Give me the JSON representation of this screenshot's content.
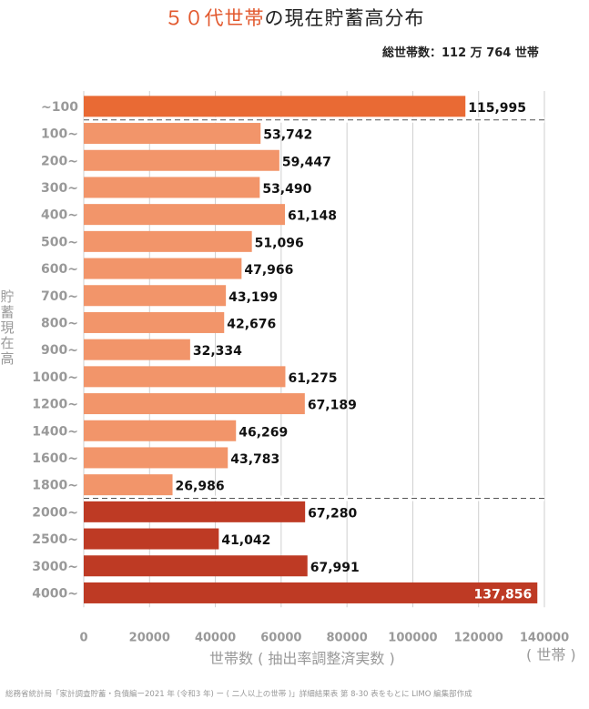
{
  "title": {
    "highlight": "５０代世帯",
    "rest": "の現在貯蓄高分布"
  },
  "total_households": "総世帯数：112 万 764 世帯",
  "x_axis_label": "世帯数 ( 抽出率調整済実数 )",
  "x_unit": "( 世帯 )",
  "y_axis_label": "貯蓄現在高",
  "source": "総務省統計局「家計調査貯蓄・負債編ー2021 年 (令和3 年) ー ( 二人以上の世帯 )」詳細結果表 第 8-30 表をもとに LIMO 編集部作成",
  "colors": {
    "top": "#e96a34",
    "middle": "#f2956a",
    "bottom": "#be3a24",
    "grid": "#cfcfcf",
    "divider": "#ffffff"
  },
  "chart_data": {
    "type": "bar",
    "orientation": "horizontal",
    "categories": [
      "~100",
      "100~",
      "200~",
      "300~",
      "400~",
      "500~",
      "600~",
      "700~",
      "800~",
      "900~",
      "1000~",
      "1200~",
      "1400~",
      "1600~",
      "1800~",
      "2000~",
      "2500~",
      "3000~",
      "4000~"
    ],
    "values": [
      115995,
      53742,
      59447,
      53490,
      61148,
      51096,
      47966,
      43199,
      42676,
      32334,
      61275,
      67189,
      46269,
      43783,
      26986,
      67280,
      41042,
      67991,
      137856
    ],
    "value_labels": [
      "115,995",
      "53,742",
      "59,447",
      "53,490",
      "61,148",
      "51,096",
      "47,966",
      "43,199",
      "42,676",
      "32,334",
      "61,275",
      "67,189",
      "46,269",
      "43,783",
      "26,986",
      "67,280",
      "41,042",
      "67,991",
      "137,856"
    ],
    "groups": [
      "top",
      "middle",
      "middle",
      "middle",
      "middle",
      "middle",
      "middle",
      "middle",
      "middle",
      "middle",
      "middle",
      "middle",
      "middle",
      "middle",
      "middle",
      "bottom",
      "bottom",
      "bottom",
      "bottom"
    ],
    "xlim": [
      0,
      140000
    ],
    "xticks": [
      0,
      20000,
      40000,
      60000,
      80000,
      100000,
      120000,
      140000
    ],
    "grid": true,
    "dashed_dividers_after": [
      "~100",
      "1800~"
    ]
  }
}
